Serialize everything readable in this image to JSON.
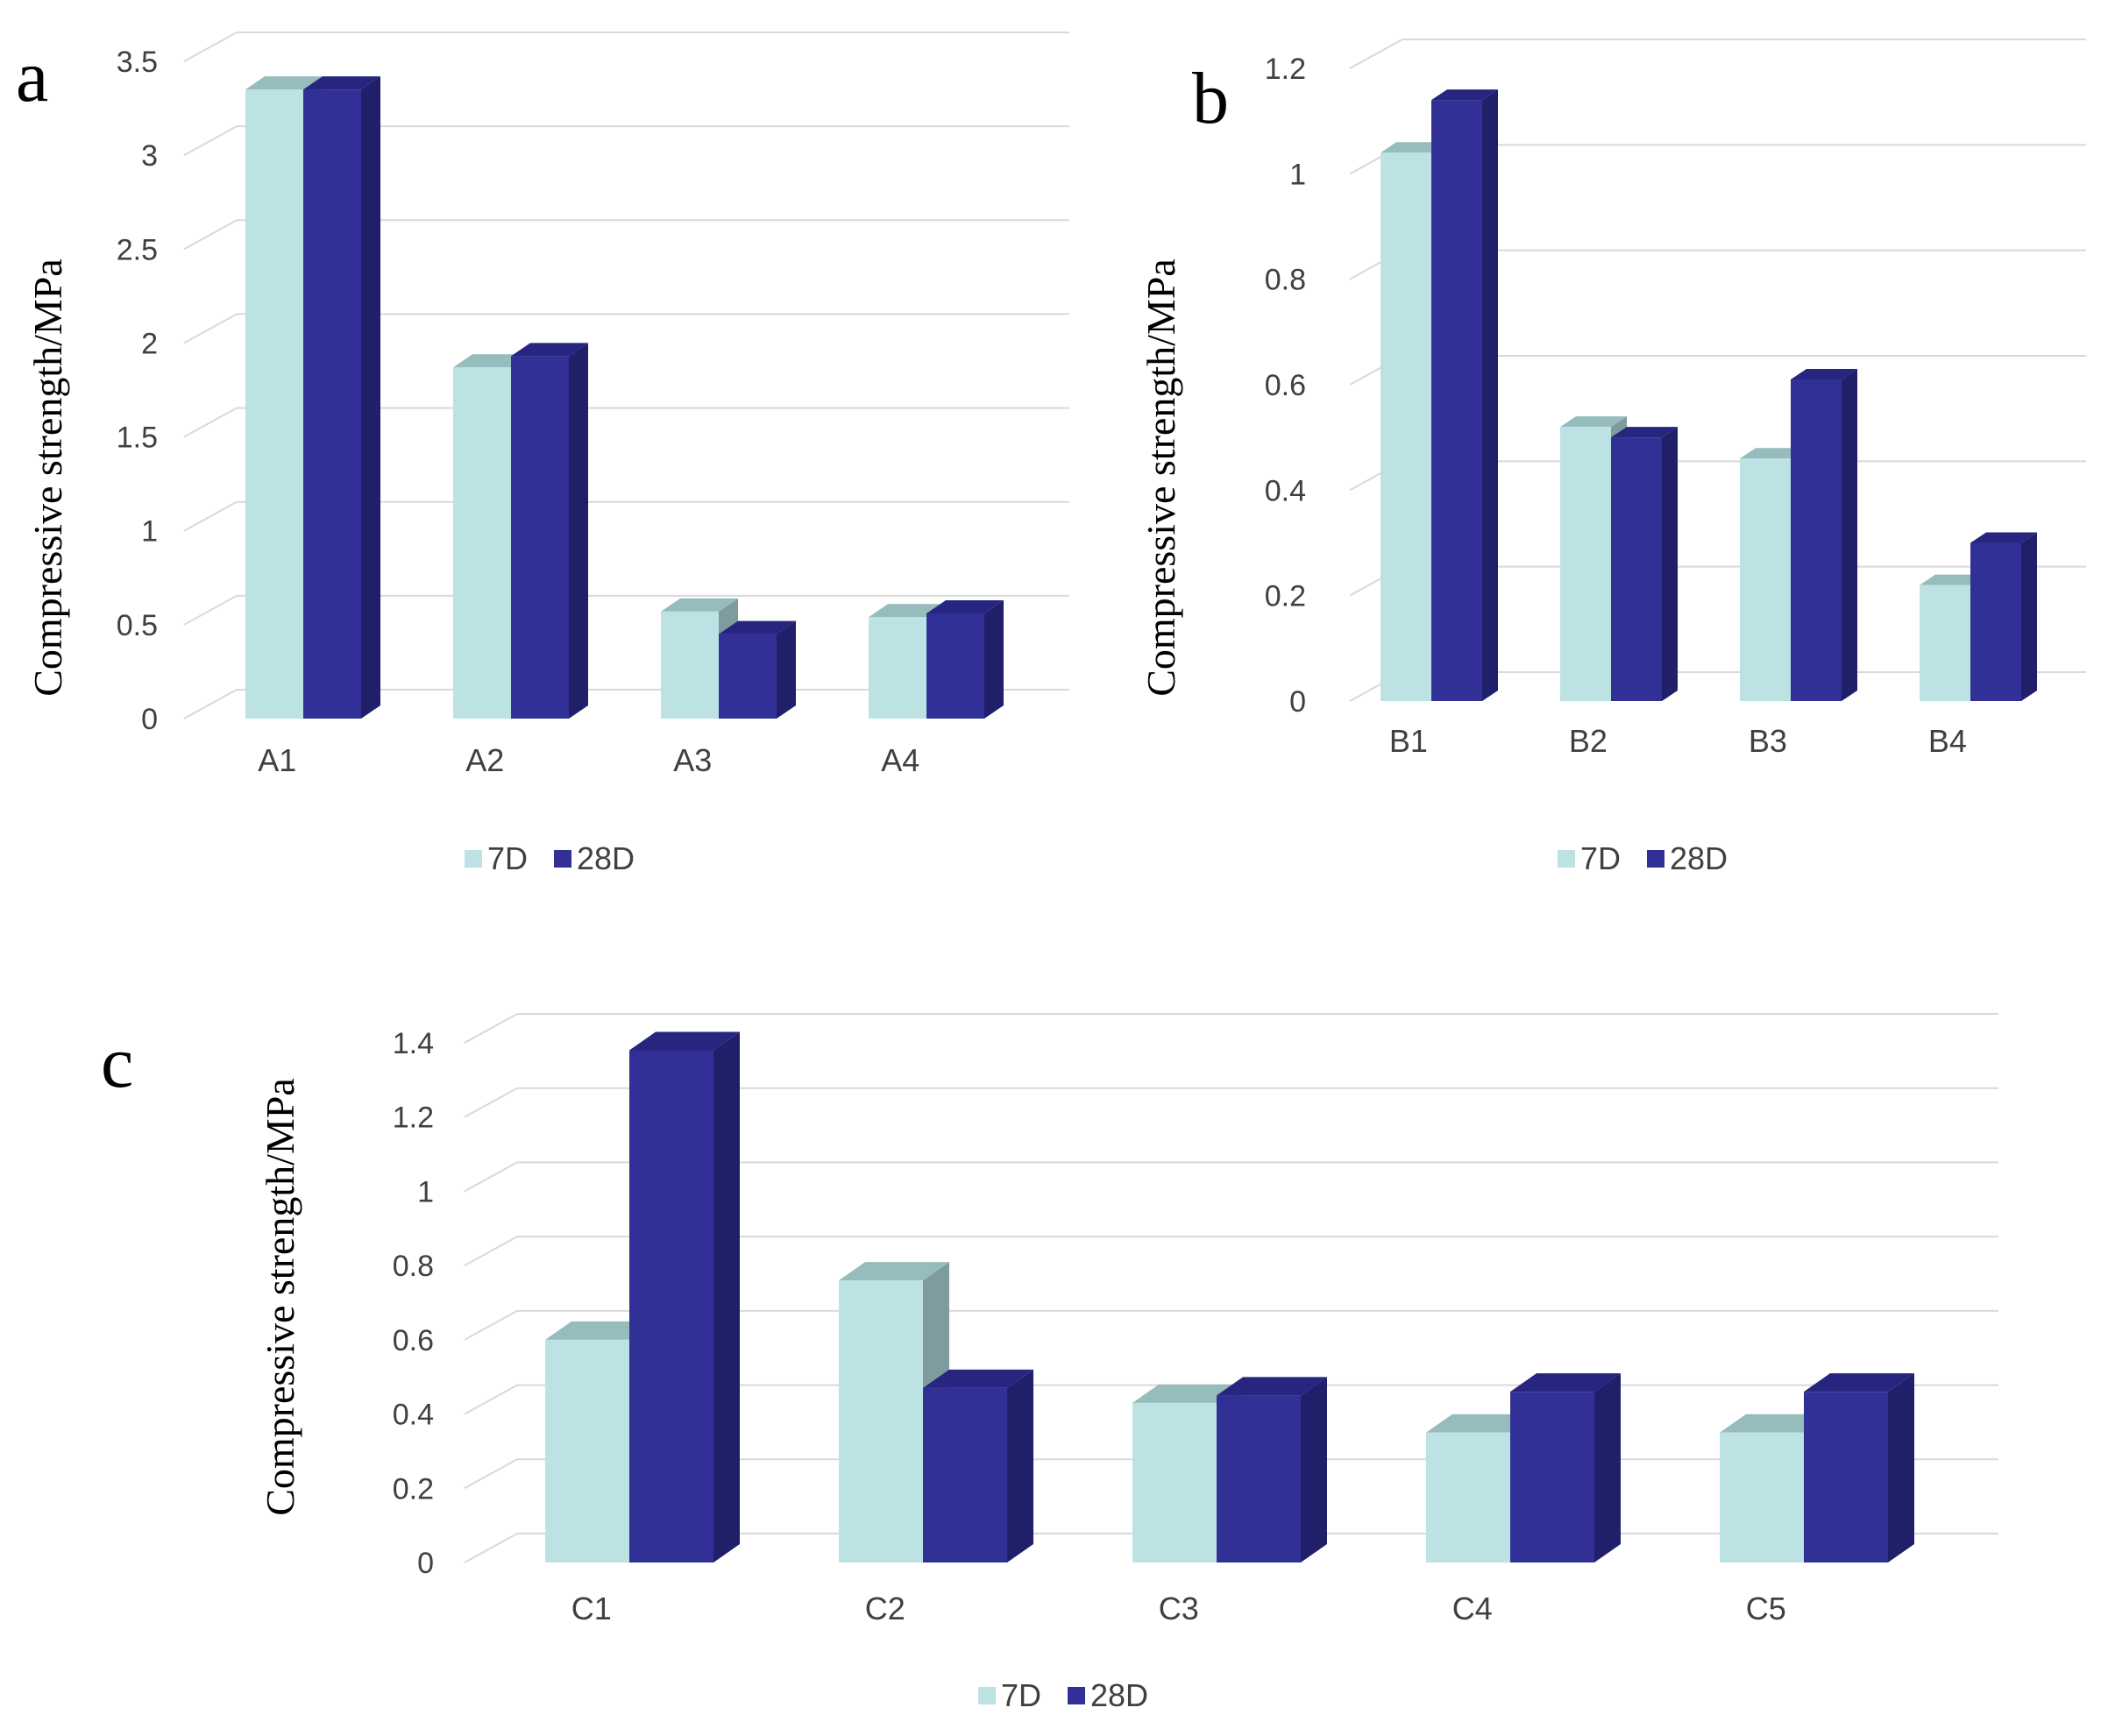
{
  "chart_data": [
    {
      "panel": "a",
      "type": "bar",
      "title": "",
      "xlabel": "",
      "ylabel": "Compressive strength/MPa",
      "ylim": [
        0,
        3.5
      ],
      "yticks": [
        "0",
        "0.5",
        "1",
        "1.5",
        "2",
        "2.5",
        "3",
        "3.5"
      ],
      "categories": [
        "A1",
        "A2",
        "A3",
        "A4"
      ],
      "series": [
        {
          "name": "7D",
          "values": [
            3.35,
            1.87,
            0.57,
            0.54
          ]
        },
        {
          "name": "28D",
          "values": [
            3.35,
            1.93,
            0.45,
            0.56
          ]
        }
      ],
      "legend": "bottom-center",
      "grid": true
    },
    {
      "panel": "b",
      "type": "bar",
      "title": "",
      "xlabel": "",
      "ylabel": "Compressive strength/MPa",
      "ylim": [
        0,
        1.2
      ],
      "yticks": [
        "0",
        "0.2",
        "0.4",
        "0.6",
        "0.8",
        "1",
        "1.2"
      ],
      "categories": [
        "B1",
        "B2",
        "B3",
        "B4"
      ],
      "series": [
        {
          "name": "7D",
          "values": [
            1.04,
            0.52,
            0.46,
            0.22
          ]
        },
        {
          "name": "28D",
          "values": [
            1.14,
            0.5,
            0.61,
            0.3
          ]
        }
      ],
      "legend": "bottom-center",
      "grid": true
    },
    {
      "panel": "c",
      "type": "bar",
      "title": "",
      "xlabel": "",
      "ylabel": "Compressive strength/MPa",
      "ylim": [
        0,
        1.4
      ],
      "yticks": [
        "0",
        "0.2",
        "0.4",
        "0.6",
        "0.8",
        "1",
        "1.2",
        "1.4"
      ],
      "categories": [
        "C1",
        "C2",
        "C3",
        "C4",
        "C5"
      ],
      "series": [
        {
          "name": "7D",
          "values": [
            0.6,
            0.76,
            0.43,
            0.35,
            0.35
          ]
        },
        {
          "name": "28D",
          "values": [
            1.38,
            0.47,
            0.45,
            0.46,
            0.46
          ]
        }
      ],
      "legend": "bottom-center",
      "grid": true
    }
  ],
  "colors": {
    "series_7d": "#bce2e3",
    "series_7d_top": "#97bcbd",
    "series_7d_side": "#7f9b9d",
    "series_28d": "#303096",
    "series_28d_top": "#262680",
    "series_28d_side": "#20206a",
    "grid": "#d9d9d9",
    "text": "#404040"
  }
}
